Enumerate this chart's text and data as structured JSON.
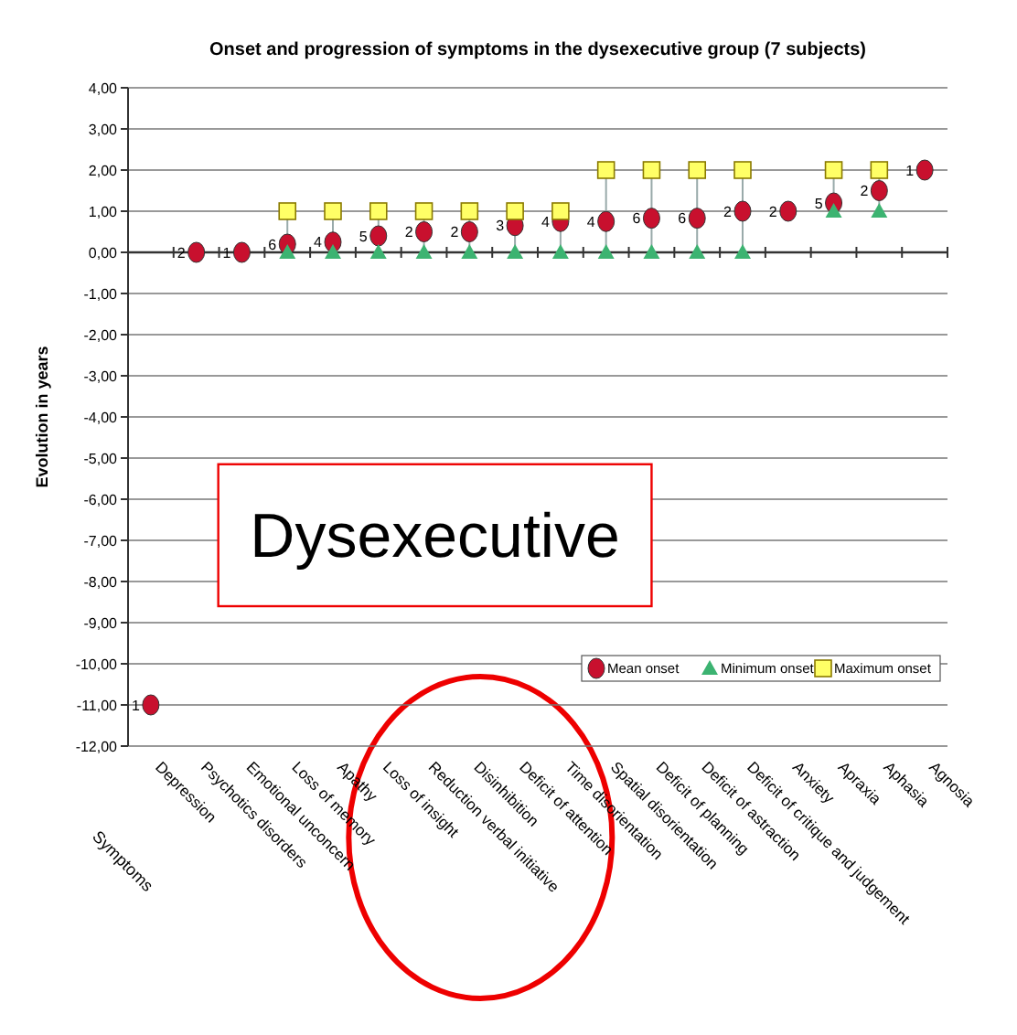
{
  "chart_data": {
    "type": "scatter",
    "title": "Onset and progression of symptoms in the dysexecutive group (7 subjects)",
    "xlabel": "Symptoms",
    "ylabel": "Evolution in years",
    "categories": [
      "Depression",
      "Psychotics disorders",
      "Emotional unconcern",
      "Loss of memory",
      "Apathy",
      "Loss of insight",
      "Reduction verbal initiative",
      "Disinhibition",
      "Deficit of attention",
      "Time disorientation",
      "Spatial disorientation",
      "Deficit of planning",
      "Deficit of astraction",
      "Deficit of critique and judgement",
      "Anxiety",
      "Apraxia",
      "Aphasia",
      "Agnosia"
    ],
    "series": [
      {
        "name": "Mean onset",
        "color": "#c8102e",
        "marker": "circle",
        "values": [
          -11,
          0,
          0,
          0.2,
          0.25,
          0.4,
          0.5,
          0.5,
          0.65,
          0.75,
          0.75,
          0.83,
          0.83,
          1,
          1,
          1.2,
          1.5,
          2
        ]
      },
      {
        "name": "Minimum onset",
        "color": "#3cb371",
        "marker": "triangle",
        "values": [
          null,
          null,
          null,
          0,
          0,
          0,
          0,
          0,
          0,
          0,
          0,
          0,
          0,
          0,
          null,
          1,
          1,
          null
        ]
      },
      {
        "name": "Maximum onset",
        "color": "#ffff66",
        "marker": "square",
        "values": [
          null,
          null,
          null,
          1,
          1,
          1,
          1,
          1,
          1,
          1,
          2,
          2,
          2,
          2,
          null,
          2,
          2,
          null
        ]
      }
    ],
    "ylim": [
      -12,
      4
    ],
    "yticks": [
      {
        "value": -12,
        "label": "-12,00"
      },
      {
        "value": -11,
        "label": "-11,00"
      },
      {
        "value": -10,
        "label": "-10,00"
      },
      {
        "value": -9,
        "label": "-9,00"
      },
      {
        "value": -8,
        "label": "-8,00"
      },
      {
        "value": -7,
        "label": "-7,00"
      },
      {
        "value": -6,
        "label": "-6,00"
      },
      {
        "value": -5,
        "label": "-5,00"
      },
      {
        "value": -4,
        "label": "-4,00"
      },
      {
        "value": -3,
        "label": "-3,00"
      },
      {
        "value": -2,
        "label": "-2,00"
      },
      {
        "value": -1,
        "label": "-1,00"
      },
      {
        "value": 0,
        "label": "0,00"
      },
      {
        "value": 1,
        "label": "1,00"
      },
      {
        "value": 2,
        "label": "2,00"
      },
      {
        "value": 3,
        "label": "3,00"
      },
      {
        "value": 4,
        "label": "4,00"
      }
    ],
    "grid": "y",
    "legend": "bottom right",
    "annotations": [
      "Dysexecutive",
      {
        "text": "1",
        "x": "Depression",
        "y": -11
      },
      {
        "text": "2",
        "x": "Psychotics disorders",
        "y": 0
      },
      {
        "text": "1",
        "x": "Emotional unconcern",
        "y": 0
      },
      {
        "text": "6",
        "x": "Loss of memory",
        "y": 0.2
      },
      {
        "text": "4",
        "x": "Apathy",
        "y": 0.25
      },
      {
        "text": "5",
        "x": "Loss of insight",
        "y": 0.4
      },
      {
        "text": "2",
        "x": "Reduction verbal initiative",
        "y": 0.5
      },
      {
        "text": "2",
        "x": "Disinhibition",
        "y": 0.5
      },
      {
        "text": "3",
        "x": "Deficit of attention",
        "y": 0.65
      },
      {
        "text": "4",
        "x": "Time disorientation",
        "y": 0.75
      },
      {
        "text": "4",
        "x": "Spatial disorientation",
        "y": 0.75
      },
      {
        "text": "6",
        "x": "Deficit of planning",
        "y": 0.83
      },
      {
        "text": "6",
        "x": "Deficit of astraction",
        "y": 0.83
      },
      {
        "text": "2",
        "x": "Deficit of critique and judgement",
        "y": 1
      },
      {
        "text": "2",
        "x": "Anxiety",
        "y": 1
      },
      {
        "text": "5",
        "x": "Apraxia",
        "y": 1.2
      },
      {
        "text": "2",
        "x": "Aphasia",
        "y": 1.5
      },
      {
        "text": "1",
        "x": "Agnosia",
        "y": 2
      }
    ]
  }
}
